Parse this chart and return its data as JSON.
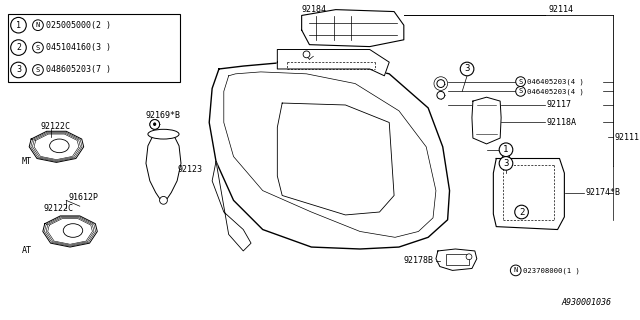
{
  "bg_color": "#ffffff",
  "line_color": "#000000",
  "diagram_id": "A930001036",
  "legend_items": [
    {
      "num": "1",
      "code": "N",
      "part": "025005000",
      "qty": "2"
    },
    {
      "num": "2",
      "code": "S",
      "part": "045104160",
      "qty": "3"
    },
    {
      "num": "3",
      "code": "S",
      "part": "048605203",
      "qty": "7"
    }
  ],
  "font_size_label": 6.0,
  "font_size_tiny": 5.2,
  "font_size_legend": 6.0
}
